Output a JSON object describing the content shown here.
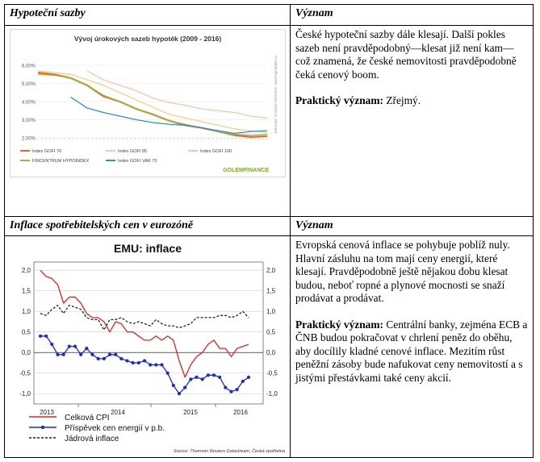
{
  "table": {
    "row1": {
      "left_header": "Hypoteční sazby",
      "right_header": "Význam",
      "paragraph": "České hypoteční sazby dále klesají. Další pokles sazeb není pravděpodobný—klesat již není kam—což znamená, že české nemovitosti pravděpodobně čeká cenový boom.",
      "practical_label": "Praktický význam:",
      "practical_text": "Zřejmý."
    },
    "row2": {
      "left_header": "Inflace spotřebitelských cen v eurozóně",
      "right_header": "Význam",
      "paragraph": "Evropská cenová inflace se pohybuje poblíž nuly. Hlavní zásluhu na tom mají ceny energií, které klesají. Pravděpodobně ještě nějakou dobu klesat budou, neboť ropné a plynové mocnosti se snaží prodávat a prodávat.",
      "practical_label": "Praktický význam:",
      "practical_text": "Centrální banky, zejména ECB a ČNB budou pokračovat v chrlení peněz do oběhu, aby docílily kladné cenové inflace. Mezitím růst peněžní zásoby bude nafukovat ceny nemovitostí a s jistými přestávkami také ceny akcií."
    }
  },
  "chart_data": [
    {
      "type": "line",
      "title": "Vývoj úrokových sazeb hypoték (2009 - 2016)",
      "ylim": [
        2.0,
        6.0
      ],
      "yticks": [
        "6,00%",
        "5,00%",
        "4,00%",
        "3,00%",
        "2,00%"
      ],
      "x": [
        2009.0,
        2009.5,
        2010.0,
        2010.5,
        2011.0,
        2011.5,
        2012.0,
        2012.5,
        2013.0,
        2013.5,
        2014.0,
        2014.5,
        2015.0,
        2015.5,
        2016.0
      ],
      "series": [
        {
          "name": "Index GOFI 70",
          "color": "#e8692b",
          "values": [
            5.6,
            5.5,
            5.3,
            4.9,
            4.3,
            4.0,
            3.6,
            3.3,
            2.95,
            2.7,
            2.55,
            2.35,
            2.15,
            2.05,
            2.1
          ]
        },
        {
          "name": "Index GOFI 85",
          "color": "#f2cf8e",
          "values": [
            5.7,
            5.6,
            5.5,
            5.2,
            4.9,
            4.5,
            4.1,
            3.7,
            3.3,
            3.1,
            2.9,
            2.7,
            2.5,
            2.4,
            2.3
          ]
        },
        {
          "name": "Index GOFI 100",
          "color": "#f4c7a8",
          "values": [
            null,
            null,
            null,
            5.7,
            5.2,
            4.9,
            4.6,
            4.2,
            3.95,
            3.8,
            3.6,
            3.5,
            3.4,
            3.2,
            3.1
          ]
        },
        {
          "name": "FINCENTRUM HYPOINDEX",
          "color": "#9bbb3c",
          "values": [
            5.5,
            5.45,
            5.3,
            4.9,
            4.35,
            4.0,
            3.6,
            3.3,
            2.95,
            2.75,
            2.55,
            2.35,
            2.2,
            2.15,
            2.2
          ]
        },
        {
          "name": "Index GOFI VAR 70",
          "color": "#2e8fd0",
          "values": [
            null,
            null,
            4.25,
            3.65,
            3.4,
            3.2,
            3.0,
            2.85,
            2.75,
            2.7,
            2.55,
            2.4,
            2.25,
            2.35,
            2.4
          ]
        }
      ],
      "brand": "GOLEMFINANCE",
      "side_text": "Zdroj dat: GOLEM FINANCE, www.hypoindex.cz"
    },
    {
      "type": "line",
      "title": "EMU: inflace",
      "ylim": [
        -1.25,
        2.2
      ],
      "yticks": [
        "2,0",
        "1,5",
        "1,0",
        "0,5",
        "0,0",
        "-0,5",
        "-1,0"
      ],
      "xticks": [
        "2013",
        "2014",
        "2015",
        "2016"
      ],
      "source": "Source: Thomson Reuters Datastream, Česká spořitelna",
      "series": [
        {
          "name": "Celková CPI",
          "color": "#e32323",
          "values": [
            2.0,
            1.85,
            1.8,
            1.65,
            1.2,
            1.35,
            1.35,
            1.2,
            0.95,
            0.85,
            0.85,
            0.75,
            0.5,
            0.75,
            0.7,
            0.5,
            0.5,
            0.4,
            0.3,
            0.3,
            0.4,
            0.3,
            0.4,
            0.3,
            -0.2,
            -0.6,
            -0.3,
            -0.1,
            0.0,
            0.2,
            0.3,
            0.1,
            0.1,
            -0.1,
            0.1,
            0.15,
            0.2
          ]
        },
        {
          "name": "Příspěvek cen energií v p.b.",
          "color": "#1a2bd0",
          "values": [
            0.4,
            0.4,
            0.2,
            -0.05,
            -0.05,
            0.15,
            0.15,
            -0.05,
            0.1,
            -0.05,
            -0.15,
            -0.15,
            -0.05,
            -0.05,
            -0.15,
            -0.2,
            -0.25,
            -0.25,
            -0.2,
            -0.3,
            -0.3,
            -0.3,
            -0.5,
            -0.8,
            -1.0,
            -0.85,
            -0.65,
            -0.6,
            -0.65,
            -0.55,
            -0.55,
            -0.6,
            -0.85,
            -0.95,
            -0.9,
            -0.7,
            -0.6
          ]
        },
        {
          "name": "Jádrová inflace",
          "color": "#222222",
          "values": [
            0.95,
            0.9,
            1.05,
            1.15,
            0.95,
            1.15,
            1.1,
            1.05,
            0.85,
            0.8,
            0.8,
            0.55,
            0.8,
            0.8,
            0.85,
            0.75,
            0.7,
            0.75,
            0.7,
            0.65,
            0.8,
            0.7,
            0.65,
            0.65,
            0.6,
            0.65,
            0.7,
            0.85,
            0.85,
            0.85,
            0.85,
            0.9,
            0.9,
            0.85,
            0.9,
            1.0,
            0.85
          ]
        }
      ]
    }
  ]
}
